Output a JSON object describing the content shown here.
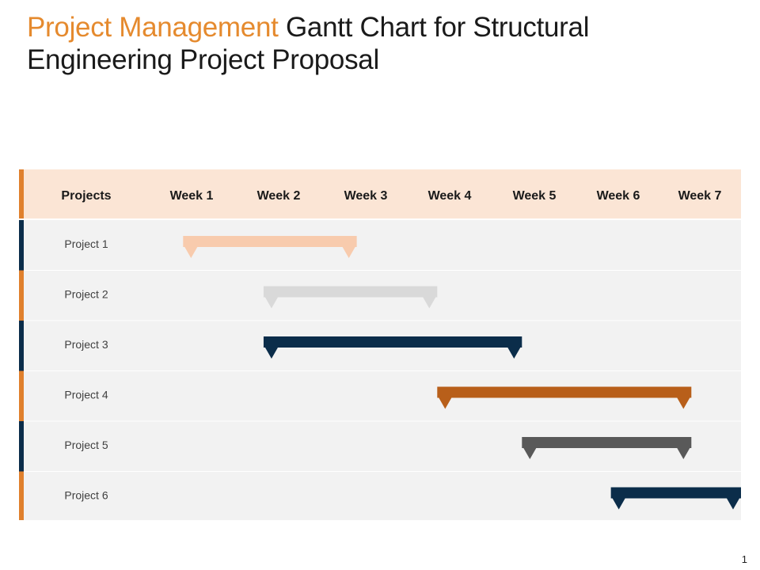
{
  "title": {
    "accent": "Project Management",
    "rest": " Gantt Chart for Structural Engineering Project Proposal"
  },
  "slide_number": "1",
  "colors": {
    "accent_orange": "#e58a2e",
    "header_bg": "#fbe5d5",
    "body_bg": "#f2f2f2",
    "stripe_orange": "#e0802d",
    "stripe_navy": "#0b2d4a"
  },
  "chart_data": {
    "type": "gantt",
    "header_label": "Projects",
    "weeks": [
      "Week 1",
      "Week 2",
      "Week 3",
      "Week 4",
      "Week 5",
      "Week 6",
      "Week 7"
    ],
    "tasks": [
      {
        "name": "Project 1",
        "start": 0.9,
        "end": 2.95,
        "color": "#f8cbad"
      },
      {
        "name": "Project 2",
        "start": 1.85,
        "end": 3.9,
        "color": "#d9d9d9"
      },
      {
        "name": "Project 3",
        "start": 1.85,
        "end": 4.9,
        "color": "#0b2d4a"
      },
      {
        "name": "Project 4",
        "start": 3.9,
        "end": 6.9,
        "color": "#b85f1a"
      },
      {
        "name": "Project 5",
        "start": 4.9,
        "end": 6.9,
        "color": "#595959"
      },
      {
        "name": "Project 6",
        "start": 5.95,
        "end": 7.5,
        "color": "#0b2d4a"
      }
    ]
  }
}
